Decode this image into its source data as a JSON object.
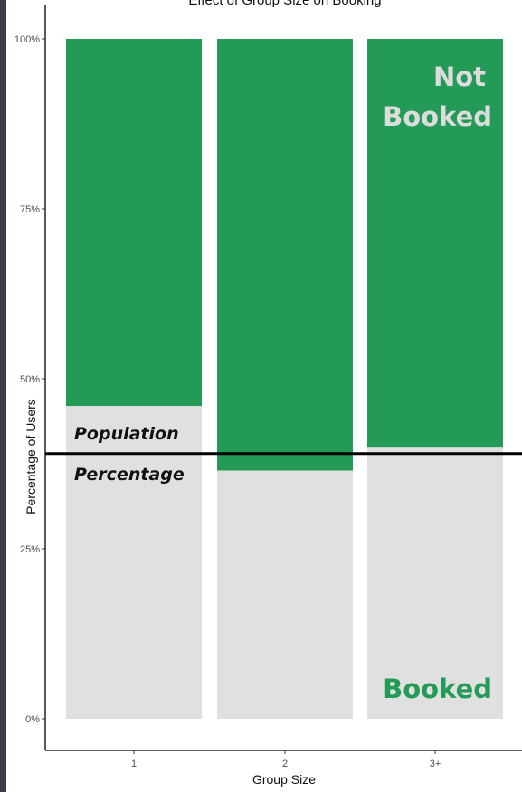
{
  "chart_data": {
    "type": "bar",
    "stacked": true,
    "title": "Effect of Group Size on Booking",
    "xlabel": "Group Size",
    "ylabel": "Percentage of Users",
    "categories": [
      "1",
      "2",
      "3+"
    ],
    "y_ticks": [
      "0%",
      "25%",
      "50%",
      "75%",
      "100%"
    ],
    "ylim": [
      0,
      100
    ],
    "series": [
      {
        "name": "Booked",
        "values": [
          46,
          36.5,
          40
        ],
        "color": "#e0e0e0"
      },
      {
        "name": "Not Booked",
        "values": [
          54,
          63.5,
          60
        ],
        "color": "#239b56"
      }
    ],
    "reference_line": {
      "value": 39,
      "color": "#000000"
    },
    "annotations": {
      "population_line1": "Population",
      "population_line2": "Percentage",
      "not_booked_line1": "Not",
      "not_booked_line2": "Booked",
      "booked": "Booked"
    },
    "grid": false
  }
}
